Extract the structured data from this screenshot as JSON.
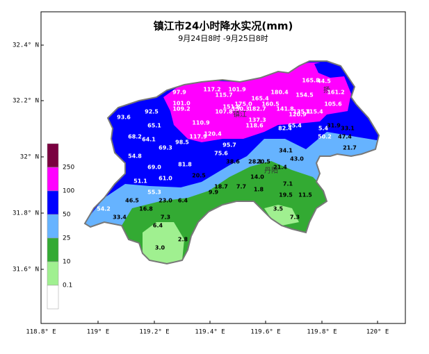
{
  "title": "镇江市24小时降水实况(mm)",
  "subtitle": "9月24日8时 -9月25日8时",
  "lon_ticks": [
    "118.8° E",
    "119° E",
    "119.2° E",
    "119.4° E",
    "119.6° E",
    "119.8° E",
    "120° E"
  ],
  "lat_ticks": [
    "32.4° N",
    "32.2° N",
    "32° N",
    "31.8° N",
    "31.6° N"
  ],
  "legend": {
    "labels": [
      "250",
      "100",
      "50",
      "25",
      "10",
      "0.1"
    ],
    "colors": [
      "#7a0040",
      "#ff00ff",
      "#0000ff",
      "#66b3ff",
      "#33aa33",
      "#a0f090",
      "#ffffff"
    ]
  },
  "places": [
    "镇江",
    "丹阳",
    "扬"
  ],
  "stations": [
    "97.9",
    "117.2",
    "101.9",
    "115.7",
    "165.4",
    "180.4",
    "154.5",
    "165.8",
    "44.5",
    "161.2",
    "105.6",
    "101.0",
    "109.2",
    "175.0",
    "151.8",
    "150.3",
    "182.7",
    "160.5",
    "107.8",
    "141.8",
    "135.1",
    "115.4",
    "120.9",
    "93.6",
    "92.5",
    "110.9",
    "137.3",
    "118.6",
    "65.1",
    "65.4",
    "82.4",
    "5.4",
    "31.9",
    "33.1",
    "120.4",
    "117.9",
    "98.5",
    "68.2",
    "64.1",
    "50.2",
    "47.4",
    "95.7",
    "69.3",
    "21.7",
    "75.6",
    "54.8",
    "34.1",
    "43.0",
    "38.6",
    "28.1",
    "20.5",
    "81.8",
    "69.0",
    "21.4",
    "20.5",
    "14.0",
    "61.0",
    "51.1",
    "7.1",
    "18.7",
    "7.7",
    "1.8",
    "9.9",
    "55.3",
    "19.5",
    "11.5",
    "46.5",
    "23.0",
    "6.4",
    "54.2",
    "16.8",
    "3.5",
    "33.4",
    "7.3",
    "7.3",
    "6.4",
    "2.8",
    "3.0"
  ]
}
